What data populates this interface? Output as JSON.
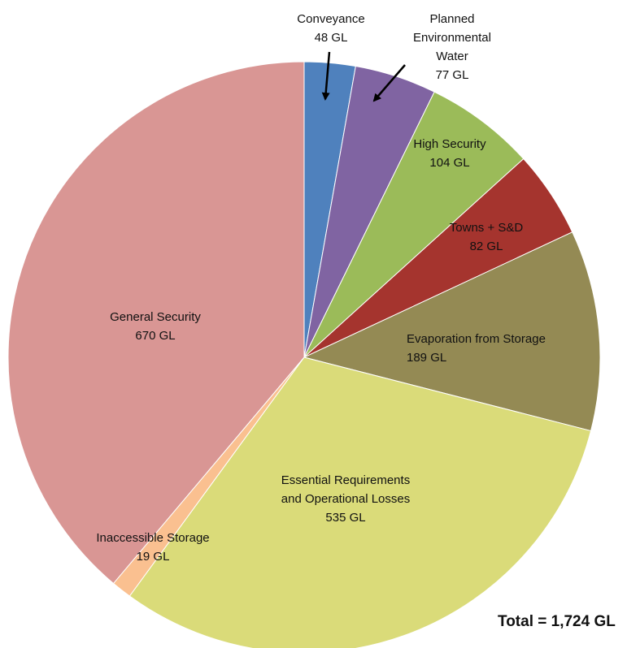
{
  "chart_data": {
    "type": "pie",
    "unit": "GL",
    "total_label": "Total = 1,724 GL",
    "slices": [
      {
        "name": "Conveyance",
        "value": 48,
        "value_label": "48 GL",
        "color": "#4F81BD"
      },
      {
        "name": "Planned Environmental Water",
        "value": 77,
        "value_label": "77 GL",
        "color": "#8064A2"
      },
      {
        "name": "High Security",
        "value": 104,
        "value_label": "104 GL",
        "color": "#9BBB59"
      },
      {
        "name": "Towns + S&D",
        "value": 82,
        "value_label": "82 GL",
        "color": "#A5342E"
      },
      {
        "name": "Evaporation from Storage",
        "value": 189,
        "value_label": "189 GL",
        "color": "#948A54"
      },
      {
        "name": "Essential Requirements and Operational Losses",
        "value": 535,
        "value_label": "535 GL",
        "color": "#DADB79"
      },
      {
        "name": "Inaccessible Storage",
        "value": 19,
        "value_label": "19 GL",
        "color": "#FAC090"
      },
      {
        "name": "General Security",
        "value": 670,
        "value_label": "670 GL",
        "color": "#D99694"
      }
    ]
  }
}
